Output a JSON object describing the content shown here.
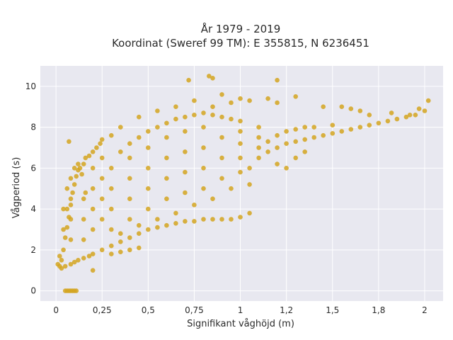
{
  "chart_data": {
    "type": "scatter",
    "title": "År 1979 - 2019",
    "subtitle": "Koordinat (Sweref 99 TM): E 355815, N 6236451",
    "xlabel": "Signifikant våghöjd (m)",
    "ylabel": "Vågperiod (s)",
    "xlim": [
      -0.085,
      2.1
    ],
    "ylim": [
      -0.5,
      11
    ],
    "x_ticks": [
      0,
      0.25,
      0.5,
      0.75,
      1,
      1.25,
      1.5,
      1.75,
      2
    ],
    "x_tick_labels": [
      "0",
      "0,25",
      "0,5",
      "0,75",
      "1",
      "1,2",
      "1,5",
      "1,8",
      "2"
    ],
    "y_ticks": [
      0,
      2,
      4,
      6,
      8,
      10
    ],
    "y_tick_labels": [
      "0",
      "2",
      "4",
      "6",
      "8",
      "10"
    ],
    "grid": true,
    "marker_color": "#D4A520",
    "plot_background": "#E8E8F0",
    "series": [
      {
        "points": [
          [
            0.02,
            1.2
          ],
          [
            0.03,
            1.5
          ],
          [
            0.04,
            2.0
          ],
          [
            0.05,
            2.6
          ],
          [
            0.06,
            3.1
          ],
          [
            0.07,
            3.6
          ],
          [
            0.08,
            4.2
          ],
          [
            0.09,
            4.8
          ],
          [
            0.1,
            5.2
          ],
          [
            0.11,
            5.6
          ],
          [
            0.12,
            5.9
          ],
          [
            0.13,
            6.0
          ],
          [
            0.14,
            5.7
          ],
          [
            0.15,
            6.2
          ],
          [
            0.16,
            6.5
          ],
          [
            0.18,
            6.6
          ],
          [
            0.2,
            6.8
          ],
          [
            0.22,
            7.0
          ],
          [
            0.24,
            7.2
          ],
          [
            0.25,
            7.4
          ],
          [
            0.03,
            1.1
          ],
          [
            0.05,
            1.2
          ],
          [
            0.08,
            1.3
          ],
          [
            0.1,
            1.4
          ],
          [
            0.12,
            1.5
          ],
          [
            0.15,
            1.6
          ],
          [
            0.18,
            1.7
          ],
          [
            0.2,
            1.8
          ],
          [
            0.25,
            2.0
          ],
          [
            0.3,
            2.2
          ],
          [
            0.35,
            2.4
          ],
          [
            0.4,
            2.6
          ],
          [
            0.45,
            2.8
          ],
          [
            0.5,
            3.0
          ],
          [
            0.55,
            3.1
          ],
          [
            0.6,
            3.2
          ],
          [
            0.65,
            3.3
          ],
          [
            0.7,
            3.4
          ],
          [
            0.75,
            3.4
          ],
          [
            0.8,
            3.5
          ],
          [
            0.85,
            3.5
          ],
          [
            0.9,
            3.5
          ],
          [
            0.95,
            3.5
          ],
          [
            1.0,
            3.6
          ],
          [
            1.05,
            3.8
          ],
          [
            0.05,
            0.0
          ],
          [
            0.06,
            0.0
          ],
          [
            0.07,
            0.0
          ],
          [
            0.08,
            0.0
          ],
          [
            0.09,
            0.0
          ],
          [
            0.1,
            0.0
          ],
          [
            0.11,
            0.0
          ],
          [
            0.3,
            3.0
          ],
          [
            0.3,
            4.0
          ],
          [
            0.3,
            5.0
          ],
          [
            0.3,
            6.0
          ],
          [
            0.35,
            6.8
          ],
          [
            0.4,
            7.2
          ],
          [
            0.45,
            7.5
          ],
          [
            0.5,
            7.8
          ],
          [
            0.55,
            8.0
          ],
          [
            0.6,
            8.2
          ],
          [
            0.65,
            8.4
          ],
          [
            0.7,
            8.5
          ],
          [
            0.75,
            8.6
          ],
          [
            0.8,
            8.7
          ],
          [
            0.85,
            8.6
          ],
          [
            0.9,
            8.5
          ],
          [
            0.95,
            8.4
          ],
          [
            1.0,
            8.3
          ],
          [
            0.4,
            3.5
          ],
          [
            0.4,
            4.5
          ],
          [
            0.4,
            5.5
          ],
          [
            0.4,
            6.5
          ],
          [
            0.5,
            4.0
          ],
          [
            0.5,
            5.0
          ],
          [
            0.5,
            6.0
          ],
          [
            0.5,
            7.0
          ],
          [
            0.6,
            4.5
          ],
          [
            0.6,
            5.5
          ],
          [
            0.6,
            6.5
          ],
          [
            0.6,
            7.5
          ],
          [
            0.7,
            4.8
          ],
          [
            0.7,
            5.8
          ],
          [
            0.7,
            6.8
          ],
          [
            0.7,
            7.8
          ],
          [
            0.8,
            5.0
          ],
          [
            0.8,
            6.0
          ],
          [
            0.8,
            7.0
          ],
          [
            0.8,
            8.0
          ],
          [
            0.9,
            5.5
          ],
          [
            0.9,
            6.5
          ],
          [
            0.9,
            7.5
          ],
          [
            1.0,
            5.8
          ],
          [
            1.0,
            6.5
          ],
          [
            1.0,
            7.2
          ],
          [
            1.0,
            7.8
          ],
          [
            1.05,
            6.0
          ],
          [
            1.1,
            6.5
          ],
          [
            1.1,
            7.0
          ],
          [
            1.1,
            7.5
          ],
          [
            1.1,
            8.0
          ],
          [
            1.15,
            6.8
          ],
          [
            1.15,
            7.3
          ],
          [
            1.2,
            6.2
          ],
          [
            1.2,
            7.0
          ],
          [
            1.2,
            7.6
          ],
          [
            1.25,
            7.2
          ],
          [
            1.25,
            7.8
          ],
          [
            1.3,
            7.3
          ],
          [
            1.3,
            7.9
          ],
          [
            1.35,
            7.4
          ],
          [
            1.35,
            8.0
          ],
          [
            1.4,
            7.5
          ],
          [
            1.4,
            8.0
          ],
          [
            1.45,
            7.6
          ],
          [
            1.5,
            7.7
          ],
          [
            1.5,
            8.1
          ],
          [
            1.55,
            7.8
          ],
          [
            1.6,
            7.9
          ],
          [
            1.65,
            8.0
          ],
          [
            1.7,
            8.1
          ],
          [
            1.75,
            8.2
          ],
          [
            1.8,
            8.3
          ],
          [
            1.85,
            8.4
          ],
          [
            1.9,
            8.5
          ],
          [
            1.95,
            8.6
          ],
          [
            2.0,
            8.8
          ],
          [
            2.02,
            9.3
          ],
          [
            1.97,
            8.9
          ],
          [
            1.2,
            10.3
          ],
          [
            0.85,
            10.4
          ],
          [
            0.83,
            10.5
          ],
          [
            0.72,
            10.3
          ],
          [
            0.2,
            1.0
          ],
          [
            0.15,
            2.5
          ],
          [
            0.15,
            3.5
          ],
          [
            0.15,
            4.5
          ],
          [
            0.2,
            3.0
          ],
          [
            0.2,
            4.0
          ],
          [
            0.2,
            5.0
          ],
          [
            0.2,
            6.0
          ],
          [
            0.25,
            3.5
          ],
          [
            0.25,
            4.5
          ],
          [
            0.25,
            5.5
          ],
          [
            0.25,
            6.5
          ],
          [
            0.08,
            2.5
          ],
          [
            0.08,
            3.5
          ],
          [
            0.08,
            4.5
          ],
          [
            0.08,
            5.5
          ],
          [
            0.06,
            4.0
          ],
          [
            0.06,
            5.0
          ],
          [
            0.04,
            3.0
          ],
          [
            0.04,
            4.0
          ],
          [
            0.02,
            1.7
          ],
          [
            0.01,
            1.3
          ],
          [
            0.12,
            6.2
          ],
          [
            0.1,
            6.0
          ],
          [
            0.07,
            7.3
          ],
          [
            0.16,
            4.8
          ],
          [
            0.95,
            9.2
          ],
          [
            1.0,
            9.4
          ],
          [
            1.05,
            9.3
          ],
          [
            1.15,
            9.4
          ],
          [
            1.2,
            9.2
          ],
          [
            1.3,
            9.5
          ],
          [
            0.9,
            9.6
          ],
          [
            0.85,
            9.0
          ],
          [
            0.75,
            9.3
          ],
          [
            0.65,
            9.0
          ],
          [
            0.55,
            8.8
          ],
          [
            0.45,
            8.5
          ],
          [
            0.35,
            8.0
          ],
          [
            0.3,
            7.6
          ],
          [
            1.45,
            9.0
          ],
          [
            1.55,
            9.0
          ],
          [
            1.6,
            8.9
          ],
          [
            1.65,
            8.8
          ],
          [
            1.7,
            8.6
          ],
          [
            1.82,
            8.7
          ],
          [
            1.92,
            8.6
          ],
          [
            1.3,
            6.5
          ],
          [
            1.35,
            6.8
          ],
          [
            1.25,
            6.0
          ],
          [
            1.05,
            5.2
          ],
          [
            0.95,
            5.0
          ],
          [
            0.85,
            4.5
          ],
          [
            0.75,
            4.2
          ],
          [
            0.65,
            3.8
          ],
          [
            0.55,
            3.5
          ],
          [
            0.45,
            3.2
          ],
          [
            0.35,
            2.8
          ],
          [
            0.35,
            1.9
          ],
          [
            0.4,
            2.0
          ],
          [
            0.45,
            2.1
          ],
          [
            0.3,
            1.8
          ]
        ]
      }
    ]
  }
}
